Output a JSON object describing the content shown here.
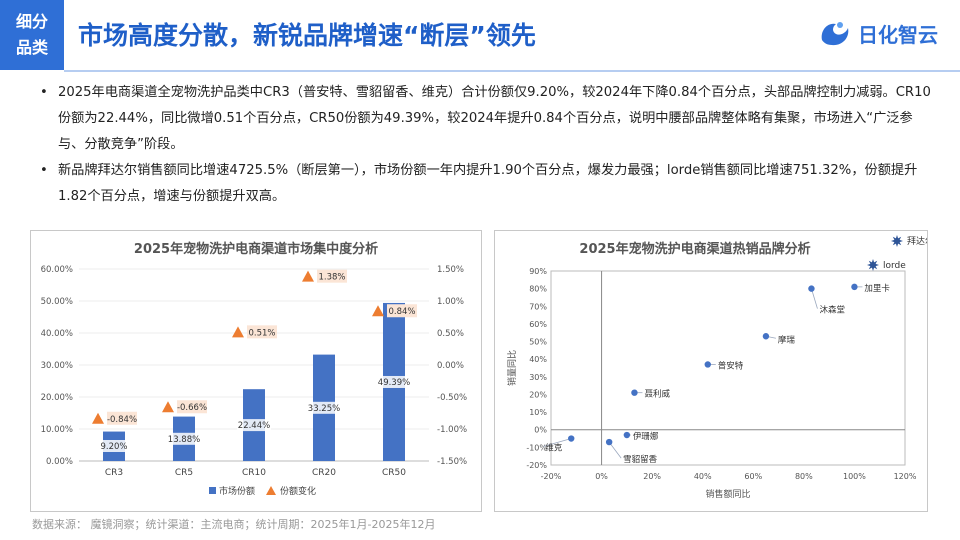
{
  "header": {
    "category_line1": "细分",
    "category_line2": "品类",
    "title": "市场高度分散，新锐品牌增速“断层”领先",
    "logo_text": "日化智云"
  },
  "bullets": [
    "2025年电商渠道全宠物洗护品类中CR3（普安特、雪貂留香、维克）合计份额仅9.20%，较2024年下降0.84个百分点，头部品牌控制力减弱。CR10份额为22.44%，同比微增0.51个百分点，CR50份额为49.39%，较2024年提升0.84个百分点，说明中腰部品牌整体略有集聚，市场进入“广泛参与、分散竞争”阶段。",
    "新品牌拜达尔销售额同比增速4725.5%（断层第一），市场份额一年内提升1.90个百分点，爆发力最强；lorde销售额同比增速751.32%，份额提升1.82个百分点，增速与份额提升双高。"
  ],
  "footer": "数据来源： 魔镜洞察；统计渠道：主流电商；统计周期：2025年1月-2025年12月",
  "chart_data": [
    {
      "type": "bar",
      "title": "2025年宠物洗护电商渠道市场集中度分析",
      "categories": [
        "CR3",
        "CR5",
        "CR10",
        "CR20",
        "CR50"
      ],
      "series": [
        {
          "name": "市场份额",
          "axis": "left",
          "values": [
            9.2,
            13.88,
            22.44,
            33.25,
            49.39
          ],
          "labels": [
            "9.20%",
            "13.88%",
            "22.44%",
            "33.25%",
            "49.39%"
          ],
          "color": "#4472c4"
        },
        {
          "name": "份额变化",
          "axis": "right",
          "marker": "triangle",
          "values": [
            -0.84,
            -0.66,
            0.51,
            1.38,
            0.84
          ],
          "labels": [
            "-0.84%",
            "-0.66%",
            "0.51%",
            "1.38%",
            "0.84%"
          ],
          "color": "#ed7d31"
        }
      ],
      "y_left": {
        "min": 0,
        "max": 60,
        "ticks": [
          "0.00%",
          "10.00%",
          "20.00%",
          "30.00%",
          "40.00%",
          "50.00%",
          "60.00%"
        ]
      },
      "y_right": {
        "min": -1.5,
        "max": 1.5,
        "ticks": [
          "-1.50%",
          "-1.00%",
          "-0.50%",
          "0.00%",
          "0.50%",
          "1.00%",
          "1.50%"
        ]
      },
      "legend": "bottom"
    },
    {
      "type": "scatter",
      "title": "2025年宠物洗护电商渠道热销品牌分析",
      "xlabel": "销售额同比",
      "ylabel": "销量同比",
      "x_axis": {
        "min": -20,
        "max": 120,
        "ticks": [
          "-20%",
          "0%",
          "20%",
          "40%",
          "60%",
          "80%",
          "100%",
          "120%"
        ]
      },
      "y_axis": {
        "min": -20,
        "max": 90,
        "ticks": [
          "-20%",
          "-10%",
          "0%",
          "10%",
          "20%",
          "30%",
          "40%",
          "50%",
          "60%",
          "70%",
          "80%",
          "90%"
        ]
      },
      "points": [
        {
          "name": "加里卡",
          "x": 100,
          "y": 81
        },
        {
          "name": "沐森堂",
          "x": 83,
          "y": 80
        },
        {
          "name": "摩瑞",
          "x": 65,
          "y": 53
        },
        {
          "name": "普安特",
          "x": 42,
          "y": 37
        },
        {
          "name": "聂利威",
          "x": 13,
          "y": 21
        },
        {
          "name": "伊珊娜",
          "x": 10,
          "y": -3
        },
        {
          "name": "维克",
          "x": -12,
          "y": -5
        },
        {
          "name": "雪貂留香",
          "x": 3,
          "y": -7
        }
      ],
      "outliers": [
        {
          "name": "拜达尔"
        },
        {
          "name": "lorde"
        }
      ],
      "point_color": "#4472c4"
    }
  ]
}
